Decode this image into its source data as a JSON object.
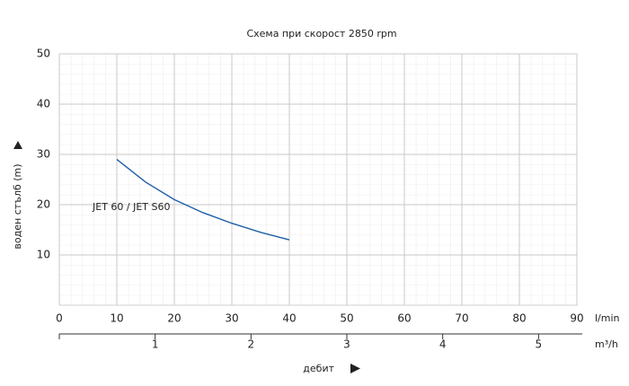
{
  "chart_data": {
    "type": "line",
    "title": "Схема при скорост 2850 rpm",
    "y_label": "воден стълб (m)",
    "x_label": "дебит",
    "x_unit": "l/min",
    "x2_unit": "m³/h",
    "x": [
      10,
      15,
      20,
      25,
      30,
      35,
      40
    ],
    "series": [
      {
        "name": "JET 60 / JET S60",
        "color": "#1f5fa8",
        "values": [
          29,
          24.5,
          21,
          18.4,
          16.3,
          14.5,
          13
        ]
      }
    ],
    "xlim": [
      0,
      90
    ],
    "xticks": [
      0,
      10,
      20,
      30,
      40,
      50,
      60,
      70,
      80,
      90
    ],
    "x2lim": [
      0,
      5.4
    ],
    "x2ticks": [
      1,
      2,
      3,
      4,
      5
    ],
    "ylim": [
      0,
      50
    ],
    "yticks": [
      10,
      20,
      30,
      40,
      50
    ],
    "grid": true
  }
}
